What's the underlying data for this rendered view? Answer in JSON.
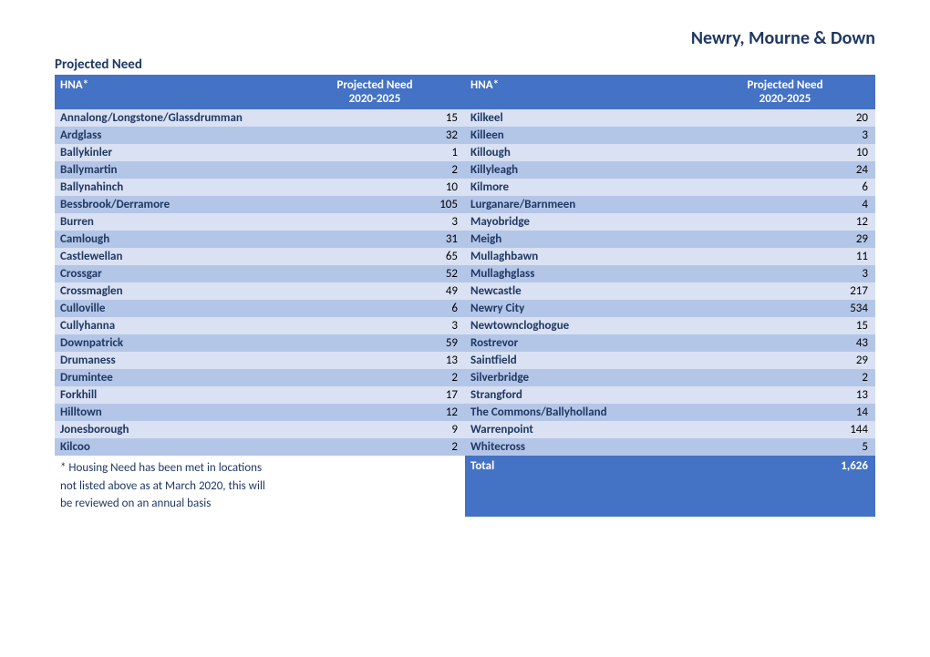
{
  "page_title": "Newry, Mourne & Down",
  "section_title": "Projected Need",
  "headers": {
    "hna": "HNA*",
    "projected_top": "Projected Need",
    "projected_bottom": "2020-2025"
  },
  "footnote_lines": [
    "* Housing Need has been met in locations",
    "not listed above as at March 2020, this will",
    "be reviewed on an annual basis"
  ],
  "total_label": "Total",
  "total_value": "1,626",
  "rows": [
    {
      "l_name": "Annalong/Longstone/Glassdrumman",
      "l_val": "15",
      "r_name": "Kilkeel",
      "r_val": "20"
    },
    {
      "l_name": "Ardglass",
      "l_val": "32",
      "r_name": "Killeen",
      "r_val": "3"
    },
    {
      "l_name": "Ballykinler",
      "l_val": "1",
      "r_name": "Killough",
      "r_val": "10"
    },
    {
      "l_name": "Ballymartin",
      "l_val": "2",
      "r_name": "Killyleagh",
      "r_val": "24"
    },
    {
      "l_name": "Ballynahinch",
      "l_val": "10",
      "r_name": "Kilmore",
      "r_val": "6"
    },
    {
      "l_name": "Bessbrook/Derramore",
      "l_val": "105",
      "r_name": "Lurganare/Barnmeen",
      "r_val": "4"
    },
    {
      "l_name": "Burren",
      "l_val": "3",
      "r_name": "Mayobridge",
      "r_val": "12"
    },
    {
      "l_name": "Camlough",
      "l_val": "31",
      "r_name": "Meigh",
      "r_val": "29"
    },
    {
      "l_name": "Castlewellan",
      "l_val": "65",
      "r_name": "Mullaghbawn",
      "r_val": "11"
    },
    {
      "l_name": "Crossgar",
      "l_val": "52",
      "r_name": "Mullaghglass",
      "r_val": "3"
    },
    {
      "l_name": "Crossmaglen",
      "l_val": "49",
      "r_name": "Newcastle",
      "r_val": "217"
    },
    {
      "l_name": "Culloville",
      "l_val": "6",
      "r_name": "Newry City",
      "r_val": "534"
    },
    {
      "l_name": "Cullyhanna",
      "l_val": "3",
      "r_name": "Newtowncloghogue",
      "r_val": "15"
    },
    {
      "l_name": "Downpatrick",
      "l_val": "59",
      "r_name": "Rostrevor",
      "r_val": "43"
    },
    {
      "l_name": "Drumaness",
      "l_val": "13",
      "r_name": "Saintfield",
      "r_val": "29"
    },
    {
      "l_name": "Drumintee",
      "l_val": "2",
      "r_name": "Silverbridge",
      "r_val": "2"
    },
    {
      "l_name": "Forkhill",
      "l_val": "17",
      "r_name": "Strangford",
      "r_val": "13"
    },
    {
      "l_name": "Hilltown",
      "l_val": "12",
      "r_name": "The Commons/Ballyholland",
      "r_val": "14"
    },
    {
      "l_name": "Jonesborough",
      "l_val": "9",
      "r_name": "Warrenpoint",
      "r_val": "144"
    },
    {
      "l_name": "Kilcoo",
      "l_val": "2",
      "r_name": "Whitecross",
      "r_val": "5"
    }
  ],
  "colors": {
    "header_bg": "#4472c4",
    "header_fg": "#ffffff",
    "band_a": "#d9e1f2",
    "band_b": "#b4c6e7",
    "text_brand": "#1f3864"
  }
}
